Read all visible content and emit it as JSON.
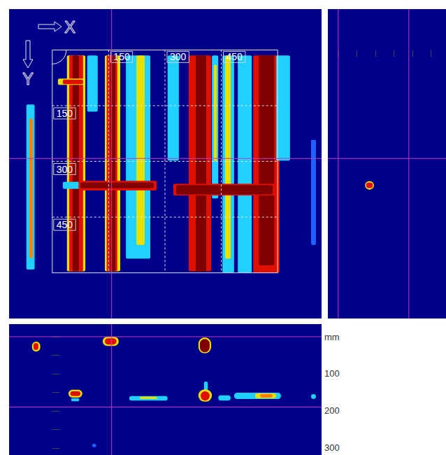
{
  "chart_data": {
    "type": "radar_scan",
    "color": "#00008b",
    "cursor_color": "#c23bc2",
    "cursor": {
      "x": 158,
      "y": 292,
      "depth": [
        0,
        190
      ]
    },
    "plan_view": {
      "axis_labels": {
        "x": "X",
        "y": "Y"
      },
      "xlim": [
        -115,
        717
      ],
      "ylim": [
        -110,
        723
      ],
      "grid": true,
      "grid_box": {
        "x": [
          0,
          600
        ],
        "y": [
          0,
          600
        ]
      },
      "xticks": [
        150,
        300,
        450
      ],
      "yticks": [
        150,
        300,
        450
      ],
      "features": [
        {
          "x": [
            -69,
            -47
          ],
          "y": [
            147,
            591
          ],
          "color": "#20d0ff"
        },
        {
          "x": [
            -61,
            -52
          ],
          "y": [
            185,
            560
          ],
          "color": "#ff8000"
        },
        {
          "x": [
            39,
            88
          ],
          "y": [
            15,
            596
          ],
          "color": "#e8e000"
        },
        {
          "x": [
            45,
            82
          ],
          "y": [
            15,
            596
          ],
          "color": "#e01000"
        },
        {
          "x": [
            54,
            71
          ],
          "y": [
            15,
            596
          ],
          "color": "#800000"
        },
        {
          "x": [
            15,
            88
          ],
          "y": [
            77,
            94
          ],
          "color": "#e8e000"
        },
        {
          "x": [
            28,
            82
          ],
          "y": [
            80,
            92
          ],
          "color": "#e01000"
        },
        {
          "x": [
            93,
            121
          ],
          "y": [
            15,
            166
          ],
          "color": "#20d0ff"
        },
        {
          "x": [
            140,
            181
          ],
          "y": [
            15,
            596
          ],
          "color": "#e8e000"
        },
        {
          "x": [
            145,
            173
          ],
          "y": [
            15,
            596
          ],
          "color": "#e01000"
        },
        {
          "x": [
            155,
            168
          ],
          "y": [
            15,
            596
          ],
          "color": "#800000"
        },
        {
          "x": [
            196,
            261
          ],
          "y": [
            15,
            562
          ],
          "color": "#20d0ff"
        },
        {
          "x": [
            224,
            246
          ],
          "y": [
            15,
            525
          ],
          "color": "#e8e000"
        },
        {
          "x": [
            307,
            337
          ],
          "y": [
            15,
            298
          ],
          "color": "#20d0ff"
        },
        {
          "x": [
            363,
            423
          ],
          "y": [
            15,
            596
          ],
          "color": "#e01000"
        },
        {
          "x": [
            382,
            410
          ],
          "y": [
            15,
            596
          ],
          "color": "#800000"
        },
        {
          "x": [
            425,
            442
          ],
          "y": [
            15,
            400
          ],
          "color": "#20d0ff"
        },
        {
          "x": [
            430,
            438
          ],
          "y": [
            40,
            300
          ],
          "color": "#e8e000"
        },
        {
          "x": [
            453,
            484
          ],
          "y": [
            15,
            600
          ],
          "color": "#20d0ff"
        },
        {
          "x": [
            460,
            475
          ],
          "y": [
            15,
            562
          ],
          "color": "#e8e000"
        },
        {
          "x": [
            494,
            531
          ],
          "y": [
            15,
            600
          ],
          "color": "#20d0ff"
        },
        {
          "x": [
            535,
            605
          ],
          "y": [
            15,
            600
          ],
          "color": "#e01000"
        },
        {
          "x": [
            550,
            591
          ],
          "y": [
            15,
            580
          ],
          "color": "#800000"
        },
        {
          "x": [
            596,
            633
          ],
          "y": [
            15,
            298
          ],
          "color": "#20d0ff"
        },
        {
          "x": [
            689,
            702
          ],
          "y": [
            242,
            525
          ],
          "color": "#2060ff"
        },
        {
          "x": [
            28,
            75
          ],
          "y": [
            355,
            374
          ],
          "color": "#20d0ff"
        },
        {
          "x": [
            70,
            278
          ],
          "y": [
            352,
            378
          ],
          "color": "#e01000"
        },
        {
          "x": [
            75,
            270
          ],
          "y": [
            357,
            372
          ],
          "color": "#800000"
        },
        {
          "x": [
            322,
            605
          ],
          "y": [
            360,
            392
          ],
          "color": "#e01000"
        },
        {
          "x": [
            330,
            587
          ],
          "y": [
            364,
            389
          ],
          "color": "#800000"
        }
      ]
    },
    "side_view": {
      "ylim": [
        -110,
        723
      ],
      "depthlim": [
        -28,
        290
      ],
      "depth_ticks": [
        0,
        50,
        100,
        150,
        200,
        250
      ],
      "tick_labels": false,
      "features": [
        {
          "y": [
            353,
            376
          ],
          "depth": [
            72,
            96
          ],
          "color": "#e8e000",
          "marker": "ellipse"
        },
        {
          "y": [
            357,
            372
          ],
          "depth": [
            75,
            93
          ],
          "color": "#e01000",
          "marker": "ellipse"
        }
      ]
    },
    "section_view": {
      "xlim": [
        -115,
        717
      ],
      "depthlim": [
        -34,
        319
      ],
      "depth_ticks": [
        {
          "value": 0,
          "label": "mm"
        },
        100,
        200,
        300
      ],
      "minor_ticks": [
        50,
        150,
        250
      ],
      "features": [
        {
          "x": [
            -54,
            -32
          ],
          "depth": [
            13,
            40
          ],
          "color": "#e8e000",
          "marker": "ellipse"
        },
        {
          "x": [
            -50,
            -37
          ],
          "depth": [
            17,
            36
          ],
          "color": "#e01000",
          "marker": "ellipse"
        },
        {
          "x": [
            134,
            177
          ],
          "depth": [
            0,
            25
          ],
          "color": "#e8e000",
          "marker": "ellipse"
        },
        {
          "x": [
            140,
            171
          ],
          "depth": [
            4,
            21
          ],
          "color": "#e01000",
          "marker": "ellipse"
        },
        {
          "x": [
            389,
            423
          ],
          "depth": [
            2,
            45
          ],
          "color": "#e8e000",
          "marker": "ellipse"
        },
        {
          "x": [
            393,
            419
          ],
          "depth": [
            6,
            42
          ],
          "color": "#800000",
          "marker": "ellipse"
        },
        {
          "x": [
            43,
            80
          ],
          "depth": [
            143,
            164
          ],
          "color": "#e8e000",
          "marker": "ellipse"
        },
        {
          "x": [
            48,
            75
          ],
          "depth": [
            147,
            160
          ],
          "color": "#e01000",
          "marker": "ellipse"
        },
        {
          "x": [
            50,
            72
          ],
          "depth": [
            166,
            174
          ],
          "color": "#20d0ff",
          "marker": "ellipse"
        },
        {
          "x": [
            205,
            307
          ],
          "depth": [
            160,
            172
          ],
          "color": "#20d0ff",
          "marker": "ellipse"
        },
        {
          "x": [
            233,
            279
          ],
          "depth": [
            162,
            168
          ],
          "color": "#e8e000",
          "marker": "ellipse"
        },
        {
          "x": [
            404,
            414
          ],
          "depth": [
            121,
            153
          ],
          "color": "#20d0ff",
          "marker": "ellipse"
        },
        {
          "x": [
            389,
            425
          ],
          "depth": [
            142,
            175
          ],
          "color": "#e8e000",
          "marker": "ellipse"
        },
        {
          "x": [
            395,
            419
          ],
          "depth": [
            147,
            172
          ],
          "color": "#e01000",
          "marker": "ellipse"
        },
        {
          "x": [
            442,
            475
          ],
          "depth": [
            158,
            172
          ],
          "color": "#20d0ff",
          "marker": "ellipse"
        },
        {
          "x": [
            484,
            609
          ],
          "depth": [
            151,
            168
          ],
          "color": "#20d0ff",
          "marker": "ellipse"
        },
        {
          "x": [
            540,
            596
          ],
          "depth": [
            153,
            166
          ],
          "color": "#e8e000",
          "marker": "ellipse"
        },
        {
          "x": [
            553,
            587
          ],
          "depth": [
            155,
            164
          ],
          "color": "#ff8000",
          "marker": "ellipse"
        },
        {
          "x": [
            689,
            702
          ],
          "depth": [
            155,
            168
          ],
          "color": "#20d0ff",
          "marker": "ellipse"
        },
        {
          "x": [
            106,
            117
          ],
          "depth": [
            289,
            298
          ],
          "color": "#2060ff",
          "marker": "ellipse"
        }
      ]
    }
  }
}
